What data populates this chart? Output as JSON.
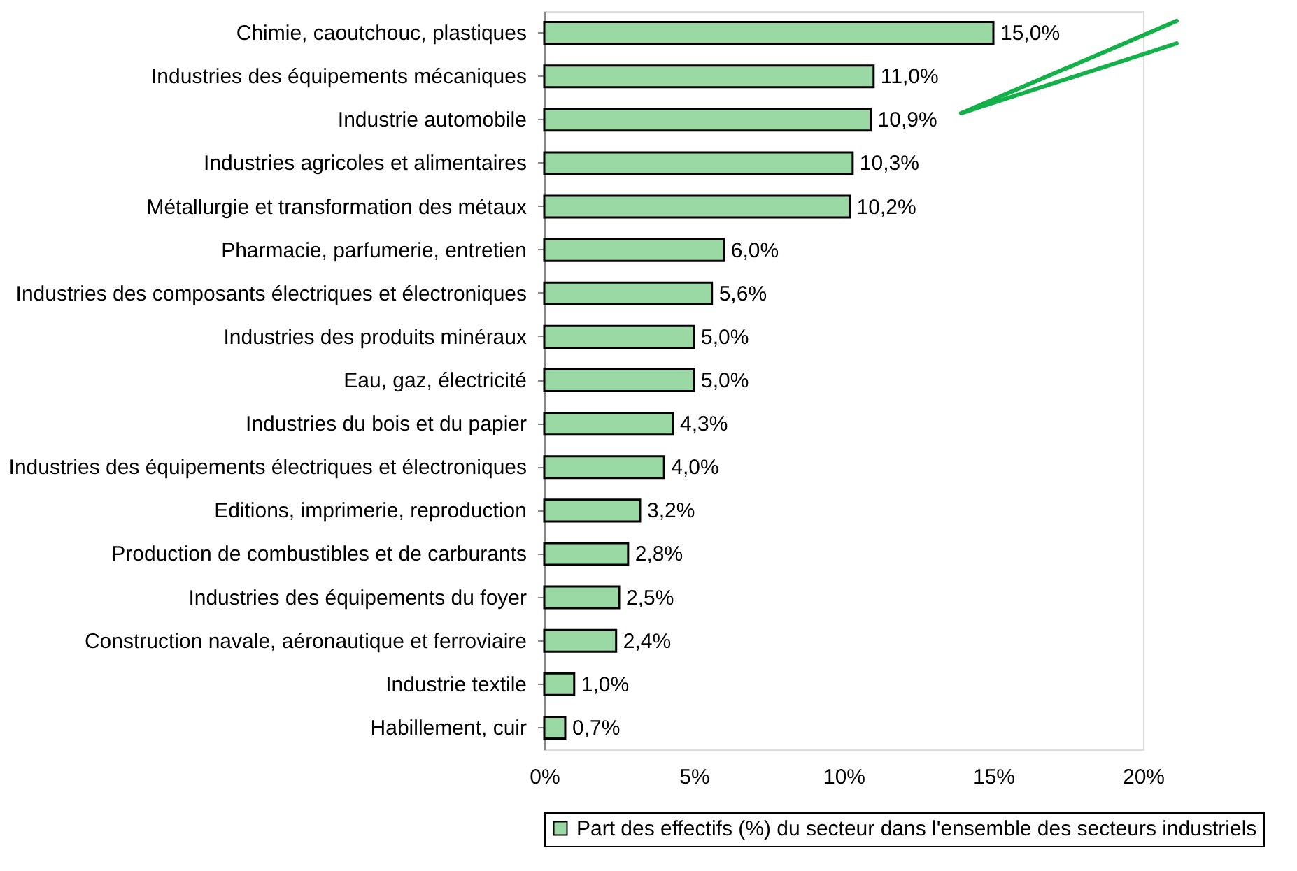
{
  "chart_data": {
    "type": "bar",
    "orientation": "horizontal",
    "categories": [
      "Chimie, caoutchouc, plastiques",
      "Industries des équipements mécaniques",
      "Industrie automobile",
      "Industries agricoles et alimentaires",
      "Métallurgie et transformation des métaux",
      "Pharmacie, parfumerie, entretien",
      "Industries des composants électriques et électroniques",
      "Industries des produits minéraux",
      "Eau, gaz, électricité",
      "Industries du bois et du papier",
      "Industries des équipements électriques et électroniques",
      "Editions, imprimerie, reproduction",
      "Production de combustibles et de carburants",
      "Industries des équipements du foyer",
      "Construction navale, aéronautique et ferroviaire",
      "Industrie textile",
      "Habillement, cuir"
    ],
    "series": [
      {
        "name": "Part des effectifs (%) du secteur dans l'ensemble des secteurs industriels",
        "color": "#9ad9a4",
        "values": [
          15.0,
          11.0,
          10.9,
          10.3,
          10.2,
          6.0,
          5.6,
          5.0,
          5.0,
          4.3,
          4.0,
          3.2,
          2.8,
          2.5,
          2.4,
          1.0,
          0.7
        ],
        "value_labels": [
          "15,0%",
          "11,0%",
          "10,9%",
          "10,3%",
          "10,2%",
          "6,0%",
          "5,6%",
          "5,0%",
          "5,0%",
          "4,3%",
          "4,0%",
          "3,2%",
          "2,8%",
          "2,5%",
          "2,4%",
          "1,0%",
          "0,7%"
        ]
      }
    ],
    "xlim": [
      0,
      20
    ],
    "xticks": [
      {
        "value": 0,
        "label": "0%"
      },
      {
        "value": 5,
        "label": "5%"
      },
      {
        "value": 10,
        "label": "10%"
      },
      {
        "value": 15,
        "label": "15%"
      },
      {
        "value": 20,
        "label": "20%"
      }
    ],
    "grid": false,
    "legend": "bottom"
  }
}
